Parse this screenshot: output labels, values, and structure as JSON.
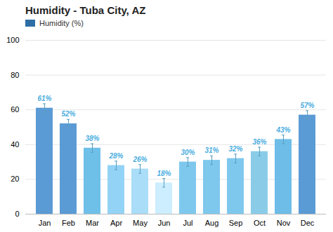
{
  "chart_data": {
    "type": "bar",
    "title": "Humidity - Tuba City, AZ",
    "categories": [
      "Jan",
      "Feb",
      "Mar",
      "Apr",
      "May",
      "Jun",
      "Jul",
      "Aug",
      "Sep",
      "Oct",
      "Nov",
      "Dec"
    ],
    "series": [
      {
        "name": "Humidity (%)",
        "color": "#2e6ea6",
        "values": [
          61,
          52,
          38,
          28,
          26,
          18,
          30,
          31,
          32,
          36,
          43,
          57
        ],
        "value_labels": [
          "61%",
          "52%",
          "38%",
          "28%",
          "26%",
          "18%",
          "30%",
          "31%",
          "32%",
          "36%",
          "43%",
          "57%"
        ],
        "colors": [
          "#5b9bd5",
          "#5b9bd5",
          "#6ec0e8",
          "#93d3f5",
          "#aaddf7",
          "#cceeff",
          "#7ec8ed",
          "#7ec8ed",
          "#7ec8ed",
          "#8acce8",
          "#6dbde8",
          "#5b9bd5"
        ],
        "errors": [
          2.5,
          2.5,
          2.5,
          2.5,
          2.5,
          2.5,
          2.5,
          2.5,
          2.5,
          2.5,
          2.5,
          2.5
        ]
      }
    ],
    "ylim": [
      0,
      100
    ],
    "yticks": [
      0,
      20,
      40,
      60,
      80,
      100
    ],
    "grid": true,
    "legend": "upper left",
    "data_labels": true
  }
}
